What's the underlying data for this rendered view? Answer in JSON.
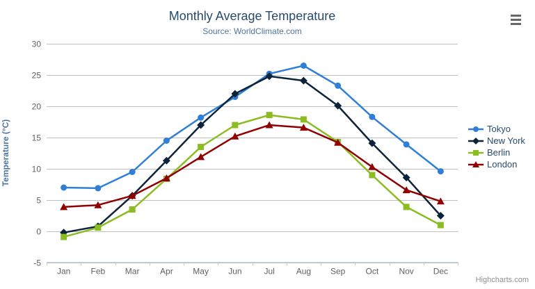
{
  "header": {
    "title": "Monthly Average Temperature",
    "subtitle": "Source: WorldClimate.com"
  },
  "icons": {
    "context_menu": "hamburger-menu-icon"
  },
  "credit": "Highcharts.com",
  "colors": {
    "title": "#274b6d",
    "subtitle": "#4d759e",
    "axis_label": "#606060",
    "axis_title": "#4d759e",
    "grid_line": "#c0c0c0",
    "axis_line": "#c0d0e0",
    "legend_text": "#274b6d",
    "credit_text": "#909090",
    "menu_icon": "#666666"
  },
  "chart_data": {
    "type": "line",
    "title": "Monthly Average Temperature",
    "subtitle": "Source: WorldClimate.com",
    "xlabel": "",
    "ylabel": "Temperature (°C)",
    "categories": [
      "Jan",
      "Feb",
      "Mar",
      "Apr",
      "May",
      "Jun",
      "Jul",
      "Aug",
      "Sep",
      "Oct",
      "Nov",
      "Dec"
    ],
    "ylim": [
      -5,
      30
    ],
    "yticks": [
      -5,
      0,
      5,
      10,
      15,
      20,
      25,
      30
    ],
    "grid": true,
    "legend_position": "right",
    "series": [
      {
        "name": "Tokyo",
        "color": "#2f7ed8",
        "marker": "circle",
        "values": [
          7.0,
          6.9,
          9.5,
          14.5,
          18.2,
          21.5,
          25.2,
          26.5,
          23.3,
          18.3,
          13.9,
          9.6
        ]
      },
      {
        "name": "New York",
        "color": "#0d233a",
        "marker": "diamond",
        "values": [
          -0.2,
          0.8,
          5.7,
          11.3,
          17.0,
          22.0,
          24.8,
          24.1,
          20.1,
          14.1,
          8.6,
          2.5
        ]
      },
      {
        "name": "Berlin",
        "color": "#8bbc21",
        "marker": "square",
        "values": [
          -0.9,
          0.6,
          3.5,
          8.4,
          13.5,
          17.0,
          18.6,
          17.9,
          14.3,
          9.0,
          3.9,
          1.0
        ]
      },
      {
        "name": "London",
        "color": "#910000",
        "marker": "triangle",
        "values": [
          3.9,
          4.2,
          5.7,
          8.5,
          11.9,
          15.2,
          17.0,
          16.6,
          14.2,
          10.3,
          6.6,
          4.8
        ]
      }
    ]
  }
}
